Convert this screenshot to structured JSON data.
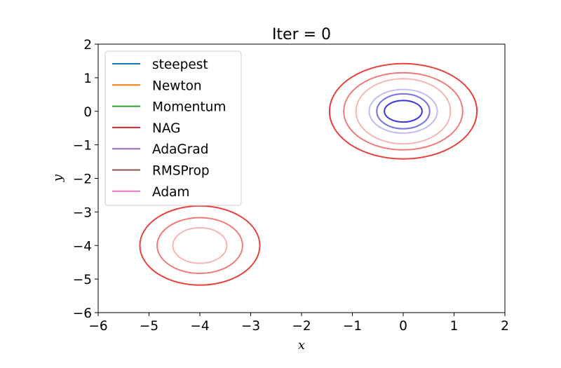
{
  "chart_data": {
    "type": "line",
    "title": "Iter = 0",
    "xlabel": "x",
    "ylabel": "y",
    "xlim": [
      -6,
      2
    ],
    "ylim": [
      -6,
      2
    ],
    "xticks": [
      -6,
      -5,
      -4,
      -3,
      -2,
      -1,
      0,
      1,
      2
    ],
    "yticks": [
      -6,
      -5,
      -4,
      -3,
      -2,
      -1,
      0,
      1,
      2
    ],
    "xtick_labels": [
      "−6",
      "−5",
      "−4",
      "−3",
      "−2",
      "−1",
      "0",
      "1",
      "2"
    ],
    "ytick_labels": [
      "−6",
      "−5",
      "−4",
      "−3",
      "−2",
      "−1",
      "0",
      "1",
      "2"
    ],
    "grid": false,
    "legend_position": "upper-left",
    "series": [
      {
        "name": "steepest",
        "color": "#1f77b4",
        "values": []
      },
      {
        "name": "Newton",
        "color": "#ff7f0e",
        "values": []
      },
      {
        "name": "Momentum",
        "color": "#2ca02c",
        "values": []
      },
      {
        "name": "NAG",
        "color": "#d62728",
        "values": []
      },
      {
        "name": "AdaGrad",
        "color": "#9467bd",
        "values": []
      },
      {
        "name": "RMSProp",
        "color": "#8c564b",
        "values": []
      },
      {
        "name": "Adam",
        "color": "#e377c2",
        "values": []
      }
    ],
    "contours": [
      {
        "center": [
          0,
          0
        ],
        "rx": 1.45,
        "ry": 1.42,
        "color": "#e8403c",
        "opacity": 1.0
      },
      {
        "center": [
          0,
          0
        ],
        "rx": 1.17,
        "ry": 1.15,
        "color": "#f07a78",
        "opacity": 1.0
      },
      {
        "center": [
          0,
          0
        ],
        "rx": 0.93,
        "ry": 0.97,
        "color": "#f7b6b5",
        "opacity": 1.0
      },
      {
        "center": [
          0,
          0
        ],
        "rx": 0.67,
        "ry": 0.65,
        "color": "#c0bdf2",
        "opacity": 1.0
      },
      {
        "center": [
          0,
          0
        ],
        "rx": 0.52,
        "ry": 0.52,
        "color": "#7672e6",
        "opacity": 1.0
      },
      {
        "center": [
          0,
          0
        ],
        "rx": 0.37,
        "ry": 0.32,
        "color": "#3b35e0",
        "opacity": 1.0
      },
      {
        "center": [
          -4,
          -4
        ],
        "rx": 1.18,
        "ry": 1.18,
        "color": "#e8403c",
        "opacity": 1.0
      },
      {
        "center": [
          -4,
          -4
        ],
        "rx": 0.84,
        "ry": 0.83,
        "color": "#f07a78",
        "opacity": 1.0
      },
      {
        "center": [
          -4,
          -4
        ],
        "rx": 0.53,
        "ry": 0.53,
        "color": "#f7b6b5",
        "opacity": 1.0
      }
    ]
  }
}
